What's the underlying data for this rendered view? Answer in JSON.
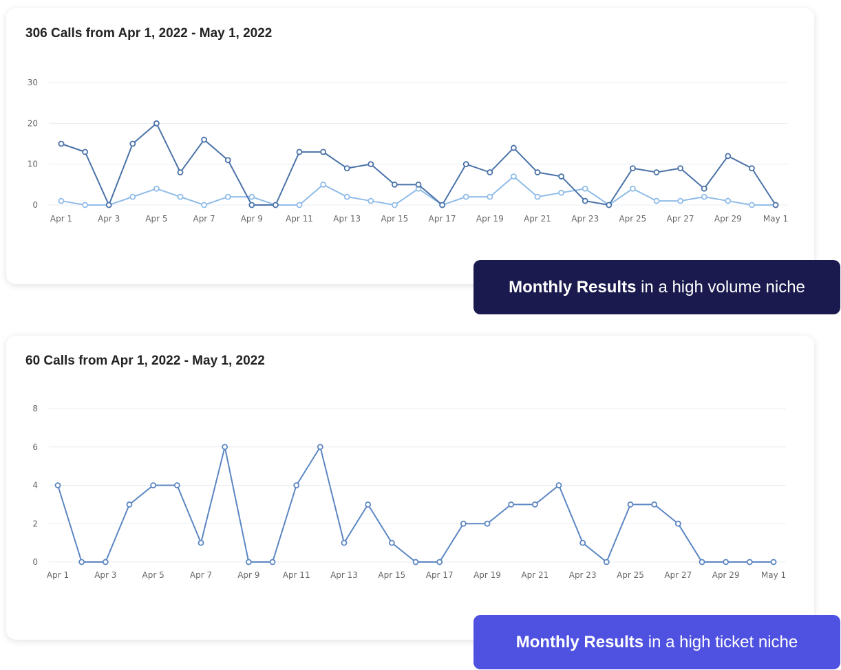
{
  "chart_data": [
    {
      "type": "line",
      "title": "306 Calls from Apr 1, 2022 - May 1, 2022",
      "x": [
        "Apr 1",
        "Apr 2",
        "Apr 3",
        "Apr 4",
        "Apr 5",
        "Apr 6",
        "Apr 7",
        "Apr 8",
        "Apr 9",
        "Apr 10",
        "Apr 11",
        "Apr 12",
        "Apr 13",
        "Apr 14",
        "Apr 15",
        "Apr 16",
        "Apr 17",
        "Apr 18",
        "Apr 19",
        "Apr 20",
        "Apr 21",
        "Apr 22",
        "Apr 23",
        "Apr 24",
        "Apr 25",
        "Apr 26",
        "Apr 27",
        "Apr 28",
        "Apr 29",
        "Apr 30",
        "May 1"
      ],
      "tick_labels": [
        "Apr 1",
        "Apr 3",
        "Apr 5",
        "Apr 7",
        "Apr 9",
        "Apr 11",
        "Apr 13",
        "Apr 15",
        "Apr 17",
        "Apr 19",
        "Apr 21",
        "Apr 23",
        "Apr 25",
        "Apr 27",
        "Apr 29",
        "May 1"
      ],
      "yticks": [
        0,
        10,
        20,
        30
      ],
      "ylim": [
        0,
        30
      ],
      "grid": true,
      "series": [
        {
          "color": "#4a72a8",
          "values": [
            15,
            13,
            0,
            15,
            20,
            8,
            16,
            11,
            0,
            0,
            13,
            13,
            9,
            10,
            5,
            5,
            0,
            10,
            8,
            14,
            8,
            7,
            1,
            0,
            9,
            8,
            9,
            4,
            12,
            9,
            0
          ]
        },
        {
          "color": "#90bce8",
          "values": [
            1,
            0,
            0,
            2,
            4,
            2,
            0,
            2,
            2,
            0,
            0,
            5,
            2,
            1,
            0,
            4,
            0,
            2,
            2,
            7,
            2,
            3,
            4,
            0,
            4,
            1,
            1,
            2,
            1,
            0,
            0
          ]
        }
      ]
    },
    {
      "type": "line",
      "title": "60 Calls from Apr 1, 2022 - May 1, 2022",
      "x": [
        "Apr 1",
        "Apr 2",
        "Apr 3",
        "Apr 4",
        "Apr 5",
        "Apr 6",
        "Apr 7",
        "Apr 8",
        "Apr 9",
        "Apr 10",
        "Apr 11",
        "Apr 12",
        "Apr 13",
        "Apr 14",
        "Apr 15",
        "Apr 16",
        "Apr 17",
        "Apr 18",
        "Apr 19",
        "Apr 20",
        "Apr 21",
        "Apr 22",
        "Apr 23",
        "Apr 24",
        "Apr 25",
        "Apr 26",
        "Apr 27",
        "Apr 28",
        "Apr 29",
        "Apr 30",
        "May 1"
      ],
      "tick_labels": [
        "Apr 1",
        "Apr 3",
        "Apr 5",
        "Apr 7",
        "Apr 9",
        "Apr 11",
        "Apr 13",
        "Apr 15",
        "Apr 17",
        "Apr 19",
        "Apr 21",
        "Apr 23",
        "Apr 25",
        "Apr 27",
        "Apr 29",
        "May 1"
      ],
      "yticks": [
        0,
        2,
        4,
        6,
        8
      ],
      "ylim": [
        0,
        8
      ],
      "grid": true,
      "series": [
        {
          "color": "#5b86c2",
          "values": [
            4,
            0,
            0,
            3,
            4,
            4,
            1,
            6,
            0,
            0,
            4,
            6,
            1,
            3,
            1,
            0,
            0,
            2,
            2,
            3,
            3,
            4,
            1,
            0,
            3,
            3,
            2,
            0,
            0,
            0,
            0
          ]
        }
      ]
    }
  ],
  "badges": [
    {
      "bold": "Monthly Results",
      "rest": " in a high volume niche",
      "color": "#1a1a4e"
    },
    {
      "bold": "Monthly Results",
      "rest": " in a high ticket niche",
      "color": "#4f52e0"
    }
  ]
}
